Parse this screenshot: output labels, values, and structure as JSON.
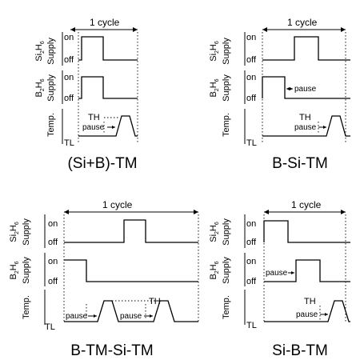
{
  "common": {
    "cycle_label": "1 cycle",
    "on_label": "on",
    "off_label": "off",
    "pause_label": "pause",
    "th_label": "TH",
    "tl_label": "TL",
    "si_supply": {
      "formula": [
        "Si",
        "2",
        "H",
        "6"
      ],
      "word": "Supply"
    },
    "b_supply": {
      "formula": [
        "B",
        "2",
        "H",
        "6"
      ],
      "word": "Supply"
    },
    "temp_label": "Temp."
  },
  "panels": [
    {
      "id": "si-b-tm",
      "title": "(Si+B)-TM"
    },
    {
      "id": "b-si-tm",
      "title": "B-Si-TM"
    },
    {
      "id": "b-tm-si-tm",
      "title": "B-TM-Si-TM"
    },
    {
      "id": "si-b-tm-seq",
      "title": "Si-B-TM"
    }
  ]
}
